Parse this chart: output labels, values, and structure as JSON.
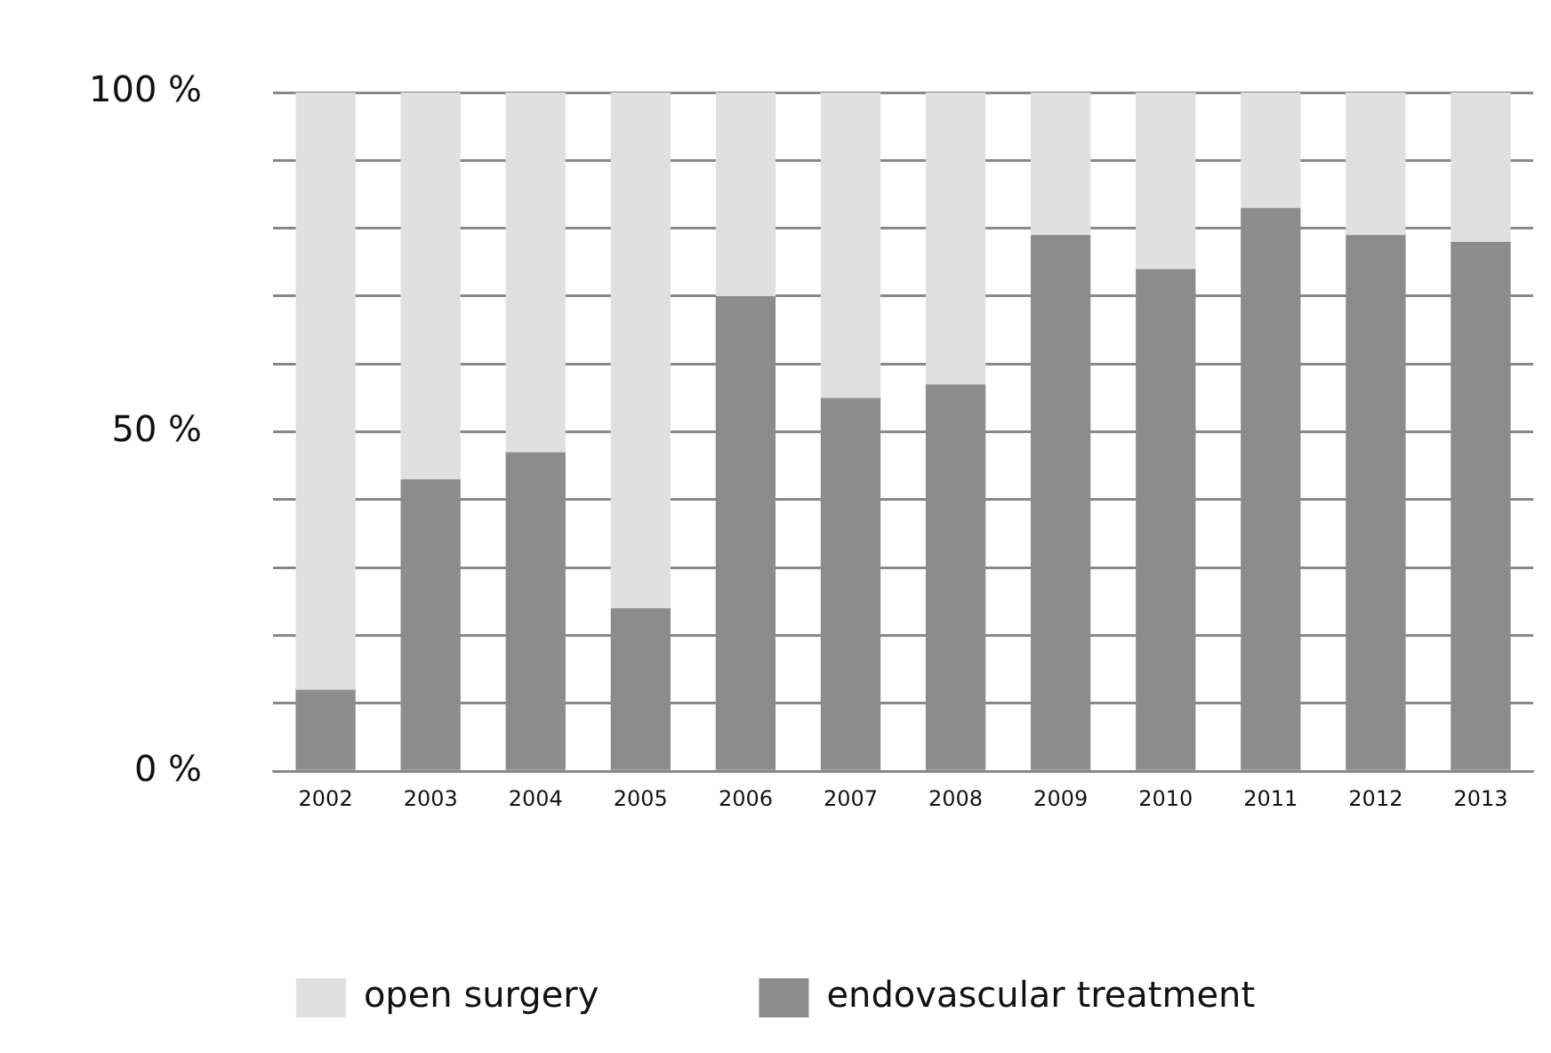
{
  "chart_data": {
    "type": "bar",
    "stacked": true,
    "categories": [
      "2002",
      "2003",
      "2004",
      "2005",
      "2006",
      "2007",
      "2008",
      "2009",
      "2010",
      "2011",
      "2012",
      "2013"
    ],
    "series": [
      {
        "name": "endovascular treatment",
        "color": "#8c8c8c",
        "values": [
          12,
          43,
          47,
          24,
          70,
          55,
          57,
          79,
          74,
          83,
          79,
          78
        ]
      },
      {
        "name": "open surgery",
        "color": "#e0e0e0",
        "values": [
          88,
          57,
          53,
          76,
          30,
          45,
          43,
          21,
          26,
          17,
          21,
          22
        ]
      }
    ],
    "ylim": [
      0,
      100
    ],
    "yticks": [
      {
        "value": 0,
        "label": "0 %"
      },
      {
        "value": 10,
        "label": null
      },
      {
        "value": 20,
        "label": null
      },
      {
        "value": 30,
        "label": null
      },
      {
        "value": 40,
        "label": null
      },
      {
        "value": 50,
        "label": "50 %"
      },
      {
        "value": 60,
        "label": null
      },
      {
        "value": 70,
        "label": null
      },
      {
        "value": 80,
        "label": null
      },
      {
        "value": 90,
        "label": null
      },
      {
        "value": 100,
        "label": "100 %"
      }
    ],
    "grid": "y",
    "legend": "bottom"
  }
}
